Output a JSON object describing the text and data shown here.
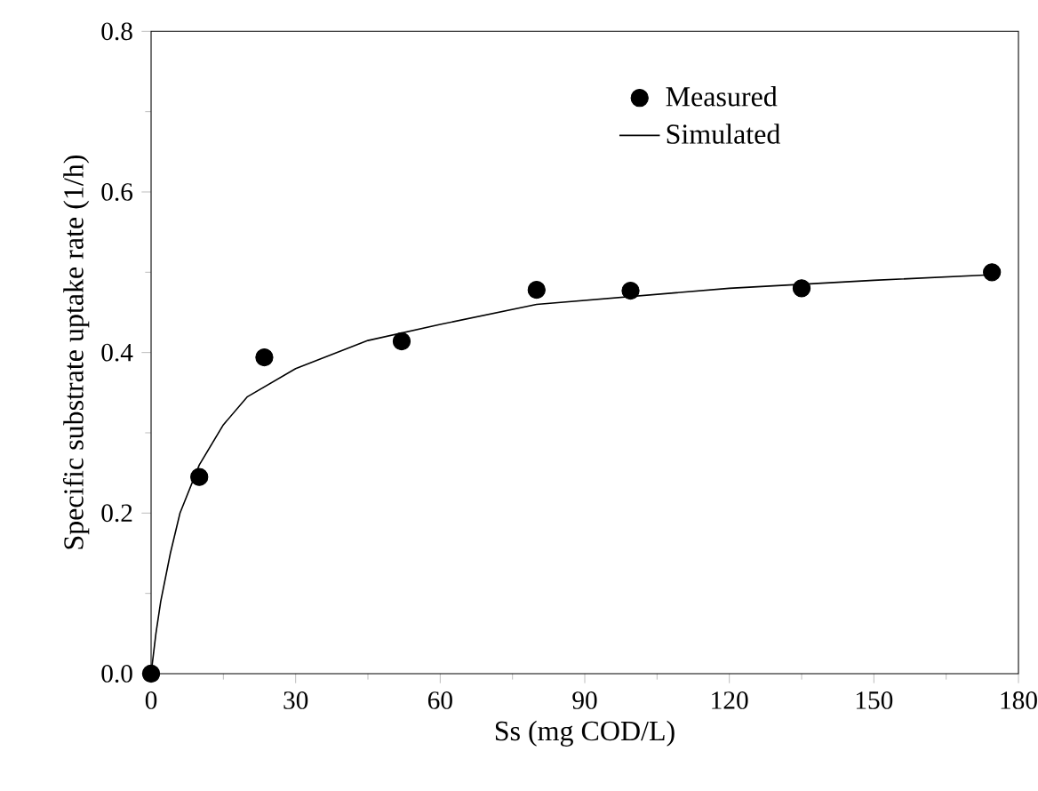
{
  "chart_data": {
    "type": "scatter",
    "xlabel": "Ss (mg COD/L)",
    "ylabel": "Specific substrate uptake rate (1/h)",
    "xlim": [
      0,
      180
    ],
    "xticks": [
      0,
      30,
      60,
      90,
      120,
      150,
      180
    ],
    "ylim": [
      0,
      0.8
    ],
    "yticks": [
      {
        "value": 0,
        "label": "0.0"
      },
      {
        "value": 0.2,
        "label": "0.2"
      },
      {
        "value": 0.4,
        "label": "0.4"
      },
      {
        "value": 0.6,
        "label": "0.6"
      },
      {
        "value": 0.8,
        "label": "0.8"
      }
    ],
    "legend": "top right",
    "grid": false,
    "series": [
      {
        "name": "Measured",
        "marker": "circle",
        "color": "#000000",
        "x": [
          0,
          10,
          23.5,
          52,
          80,
          99.5,
          135,
          174.5
        ],
        "values": [
          0,
          0.245,
          0.394,
          0.414,
          0.478,
          0.477,
          0.48,
          0.5
        ]
      },
      {
        "name": "Simulated",
        "type": "line",
        "line_style": "solid",
        "color": "#000000",
        "x": [
          0,
          1,
          2,
          4,
          6,
          10,
          15,
          20,
          30,
          45,
          60,
          80,
          100,
          120,
          150,
          175
        ],
        "values": [
          0,
          0.05,
          0.09,
          0.15,
          0.2,
          0.26,
          0.31,
          0.345,
          0.38,
          0.415,
          0.435,
          0.46,
          0.47,
          0.48,
          0.49,
          0.497
        ]
      }
    ]
  }
}
